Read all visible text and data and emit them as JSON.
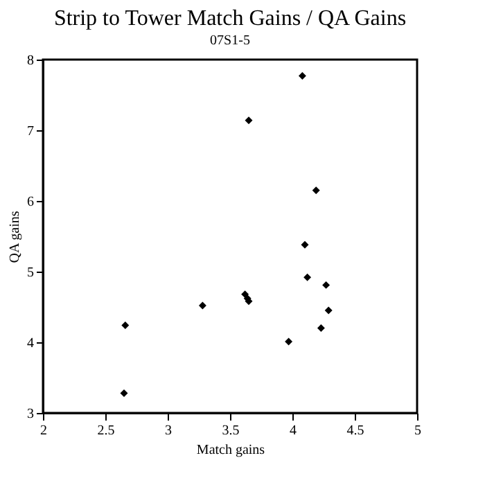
{
  "chart_data": {
    "type": "scatter",
    "title": "Strip to Tower Match Gains / QA Gains",
    "subtitle": "07S1-5",
    "xlabel": "Match gains",
    "ylabel": "QA gains",
    "x": [
      4.08,
      3.65,
      4.19,
      4.1,
      4.12,
      4.27,
      4.29,
      4.23,
      3.97,
      3.62,
      3.64,
      3.65,
      3.28,
      2.66,
      2.65
    ],
    "series": [
      {
        "color": "#000000",
        "values": [
          7.77,
          7.14,
          6.15,
          5.38,
          4.92,
          4.81,
          4.45,
          4.2,
          4.01,
          4.68,
          4.62,
          4.58,
          4.52,
          4.24,
          3.28
        ]
      }
    ],
    "xlim": [
      2,
      5
    ],
    "xticks": [
      2,
      2.5,
      3,
      3.5,
      4,
      4.5,
      5
    ],
    "ylim": [
      3,
      8
    ],
    "yticks": [
      3,
      4,
      5,
      6,
      7,
      8
    ],
    "grid": false,
    "marker": "diamond"
  }
}
